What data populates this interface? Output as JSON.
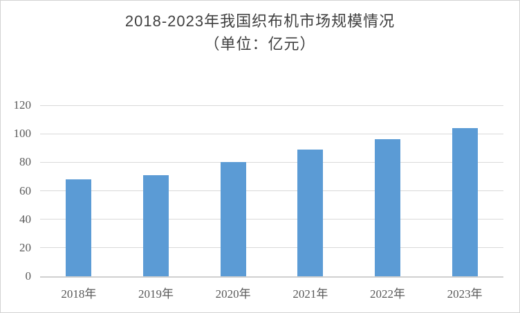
{
  "title": {
    "line1": "2018-2023年我国织布机市场规模情况",
    "line2": "（单位：亿元）"
  },
  "chart_data": {
    "type": "bar",
    "title": "2018-2023年我国织布机市场规模情况",
    "subtitle": "（单位：亿元）",
    "unit": "亿元",
    "categories": [
      "2018年",
      "2019年",
      "2020年",
      "2021年",
      "2022年",
      "2023年"
    ],
    "values": [
      68,
      71,
      80,
      89,
      96,
      104
    ],
    "xlabel": "",
    "ylabel": "",
    "ylim": [
      0,
      120
    ],
    "yticks": [
      0,
      20,
      40,
      60,
      80,
      100,
      120
    ],
    "grid": true,
    "legend": false
  },
  "colors": {
    "bar": "#5B9BD5",
    "gridline": "#D9D9D9",
    "axis_line": "#CFCFCF",
    "title_text": "#3F3F3F",
    "tick_label": "#595959",
    "chart_border": "#D2D2D2",
    "background": "#FFFFFF"
  }
}
